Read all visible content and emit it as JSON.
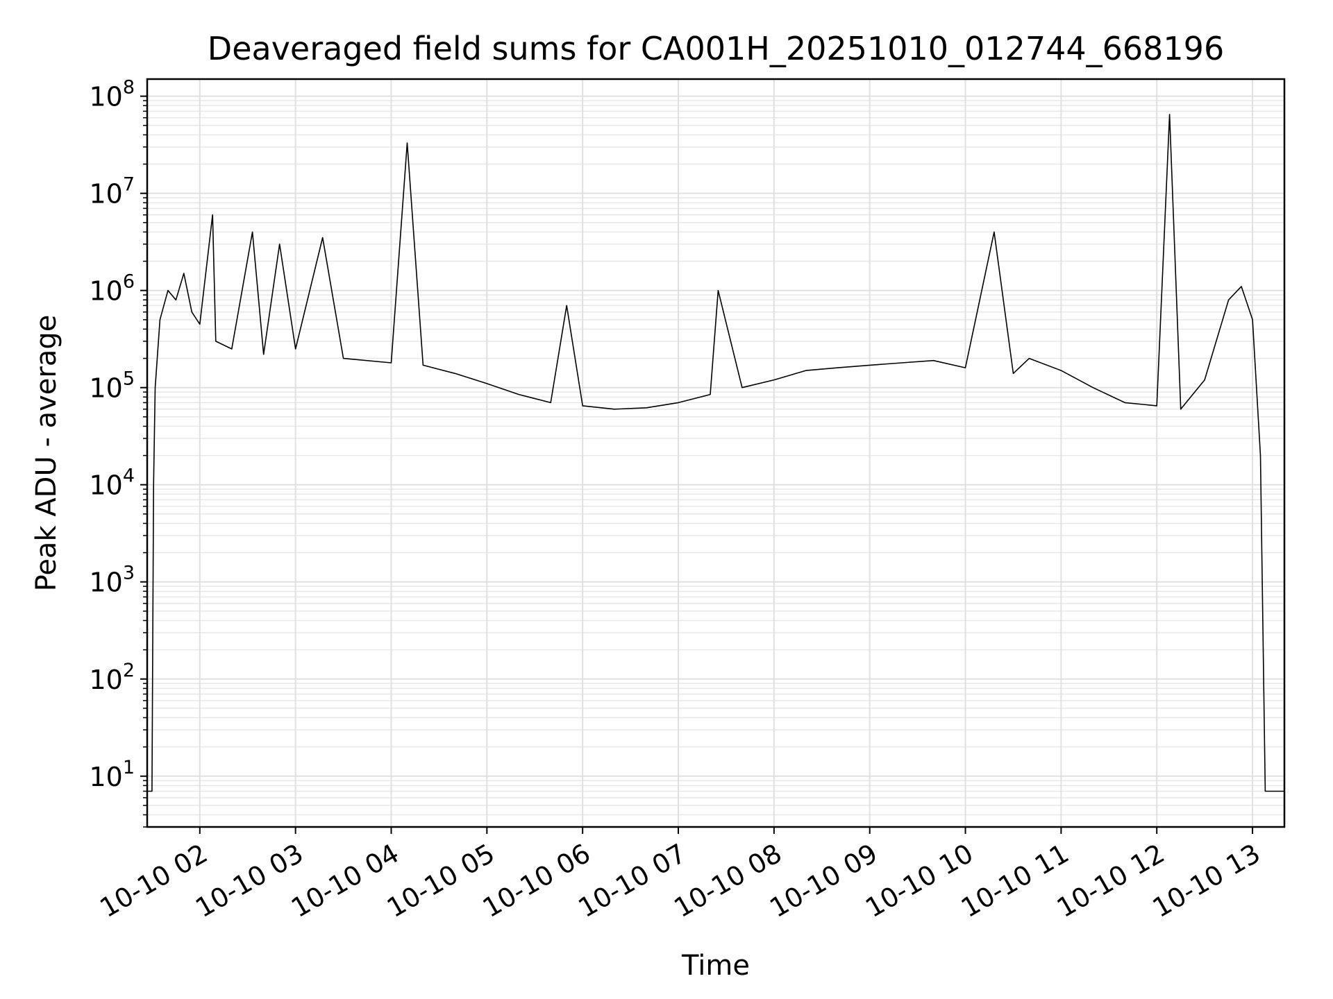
{
  "chart_data": {
    "type": "line",
    "title": "Deaveraged field sums for CA001H_20251010_012744_668196",
    "xlabel": "Time",
    "ylabel": "Peak ADU - average",
    "x_axis": {
      "kind": "time",
      "range": [
        "2025-10-10 01:27",
        "2025-10-10 13:20"
      ],
      "ticks": [
        "2025-10-10 02:00",
        "2025-10-10 03:00",
        "2025-10-10 04:00",
        "2025-10-10 05:00",
        "2025-10-10 06:00",
        "2025-10-10 07:00",
        "2025-10-10 08:00",
        "2025-10-10 09:00",
        "2025-10-10 10:00",
        "2025-10-10 11:00",
        "2025-10-10 12:00",
        "2025-10-10 13:00"
      ],
      "tick_labels": [
        "10-10 02",
        "10-10 03",
        "10-10 04",
        "10-10 05",
        "10-10 06",
        "10-10 07",
        "10-10 08",
        "10-10 09",
        "10-10 10",
        "10-10 11",
        "10-10 12",
        "10-10 13"
      ],
      "tick_label_rotation_deg": 30
    },
    "y_axis": {
      "scale": "log",
      "range": [
        3,
        150000000
      ],
      "ticks": [
        10,
        100,
        1000,
        10000,
        100000,
        1000000,
        10000000,
        100000000
      ],
      "tick_labels": [
        {
          "base": "10",
          "exp": "1"
        },
        {
          "base": "10",
          "exp": "2"
        },
        {
          "base": "10",
          "exp": "3"
        },
        {
          "base": "10",
          "exp": "4"
        },
        {
          "base": "10",
          "exp": "5"
        },
        {
          "base": "10",
          "exp": "6"
        },
        {
          "base": "10",
          "exp": "7"
        },
        {
          "base": "10",
          "exp": "8"
        }
      ]
    },
    "grid": true,
    "minor_grid": true,
    "series": [
      {
        "color": "#000000",
        "points": [
          [
            "2025-10-10 01:27",
            7
          ],
          [
            "2025-10-10 01:30",
            7
          ],
          [
            "2025-10-10 01:31",
            10000
          ],
          [
            "2025-10-10 01:32",
            100000
          ],
          [
            "2025-10-10 01:35",
            500000
          ],
          [
            "2025-10-10 01:40",
            1000000
          ],
          [
            "2025-10-10 01:45",
            800000
          ],
          [
            "2025-10-10 01:50",
            1500000
          ],
          [
            "2025-10-10 01:55",
            600000
          ],
          [
            "2025-10-10 02:00",
            450000
          ],
          [
            "2025-10-10 02:08",
            6000000
          ],
          [
            "2025-10-10 02:10",
            300000
          ],
          [
            "2025-10-10 02:20",
            250000
          ],
          [
            "2025-10-10 02:33",
            4000000
          ],
          [
            "2025-10-10 02:40",
            220000
          ],
          [
            "2025-10-10 02:50",
            3000000
          ],
          [
            "2025-10-10 03:00",
            250000
          ],
          [
            "2025-10-10 03:17",
            3500000
          ],
          [
            "2025-10-10 03:30",
            200000
          ],
          [
            "2025-10-10 04:00",
            180000
          ],
          [
            "2025-10-10 04:10",
            33000000
          ],
          [
            "2025-10-10 04:20",
            170000
          ],
          [
            "2025-10-10 04:40",
            140000
          ],
          [
            "2025-10-10 05:00",
            110000
          ],
          [
            "2025-10-10 05:20",
            85000
          ],
          [
            "2025-10-10 05:40",
            70000
          ],
          [
            "2025-10-10 05:50",
            700000
          ],
          [
            "2025-10-10 06:00",
            65000
          ],
          [
            "2025-10-10 06:20",
            60000
          ],
          [
            "2025-10-10 06:40",
            62000
          ],
          [
            "2025-10-10 07:00",
            70000
          ],
          [
            "2025-10-10 07:20",
            85000
          ],
          [
            "2025-10-10 07:25",
            1000000
          ],
          [
            "2025-10-10 07:40",
            100000
          ],
          [
            "2025-10-10 08:00",
            120000
          ],
          [
            "2025-10-10 08:20",
            150000
          ],
          [
            "2025-10-10 08:40",
            160000
          ],
          [
            "2025-10-10 09:00",
            170000
          ],
          [
            "2025-10-10 09:20",
            180000
          ],
          [
            "2025-10-10 09:40",
            190000
          ],
          [
            "2025-10-10 10:00",
            160000
          ],
          [
            "2025-10-10 10:18",
            4000000
          ],
          [
            "2025-10-10 10:30",
            140000
          ],
          [
            "2025-10-10 10:40",
            200000
          ],
          [
            "2025-10-10 11:00",
            150000
          ],
          [
            "2025-10-10 11:20",
            100000
          ],
          [
            "2025-10-10 11:40",
            70000
          ],
          [
            "2025-10-10 12:00",
            65000
          ],
          [
            "2025-10-10 12:08",
            65000000
          ],
          [
            "2025-10-10 12:15",
            60000
          ],
          [
            "2025-10-10 12:30",
            120000
          ],
          [
            "2025-10-10 12:45",
            800000
          ],
          [
            "2025-10-10 12:53",
            1100000
          ],
          [
            "2025-10-10 13:00",
            500000
          ],
          [
            "2025-10-10 13:05",
            20000
          ],
          [
            "2025-10-10 13:08",
            7
          ],
          [
            "2025-10-10 13:20",
            7
          ]
        ]
      }
    ]
  }
}
